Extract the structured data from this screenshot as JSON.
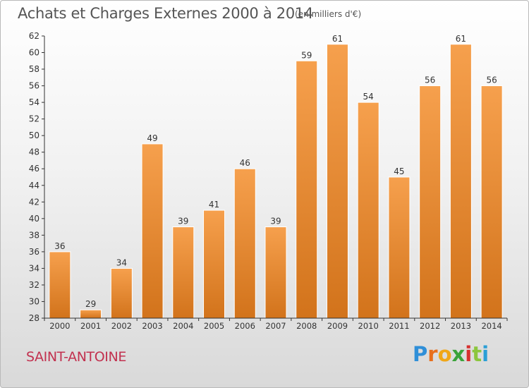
{
  "header": {
    "title": "Achats et Charges Externes 2000 à 2014",
    "unit": "(en milliers d'€)"
  },
  "footer": {
    "commune": "SAINT-ANTOINE",
    "logo_letters": [
      "P",
      "r",
      "o",
      "x",
      "i",
      "t",
      "i"
    ]
  },
  "colors": {
    "bar_light": "#f6a04d",
    "bar_dark": "#d2731b",
    "axis": "#333333",
    "commune_text": "#c2314f"
  },
  "chart_data": {
    "type": "bar",
    "title": "Achats et Charges Externes 2000 à 2014",
    "subtitle": "(en milliers d'€)",
    "categories": [
      "2000",
      "2001",
      "2002",
      "2003",
      "2004",
      "2005",
      "2006",
      "2007",
      "2008",
      "2009",
      "2010",
      "2011",
      "2012",
      "2013",
      "2014"
    ],
    "values": [
      36,
      29,
      34,
      49,
      39,
      41,
      46,
      39,
      59,
      61,
      54,
      45,
      56,
      61,
      56
    ],
    "ylim": [
      28,
      62
    ],
    "yticks": [
      28,
      30,
      32,
      34,
      36,
      38,
      40,
      42,
      44,
      46,
      48,
      50,
      52,
      54,
      56,
      58,
      60,
      62
    ],
    "grid": false,
    "data_labels": true
  }
}
